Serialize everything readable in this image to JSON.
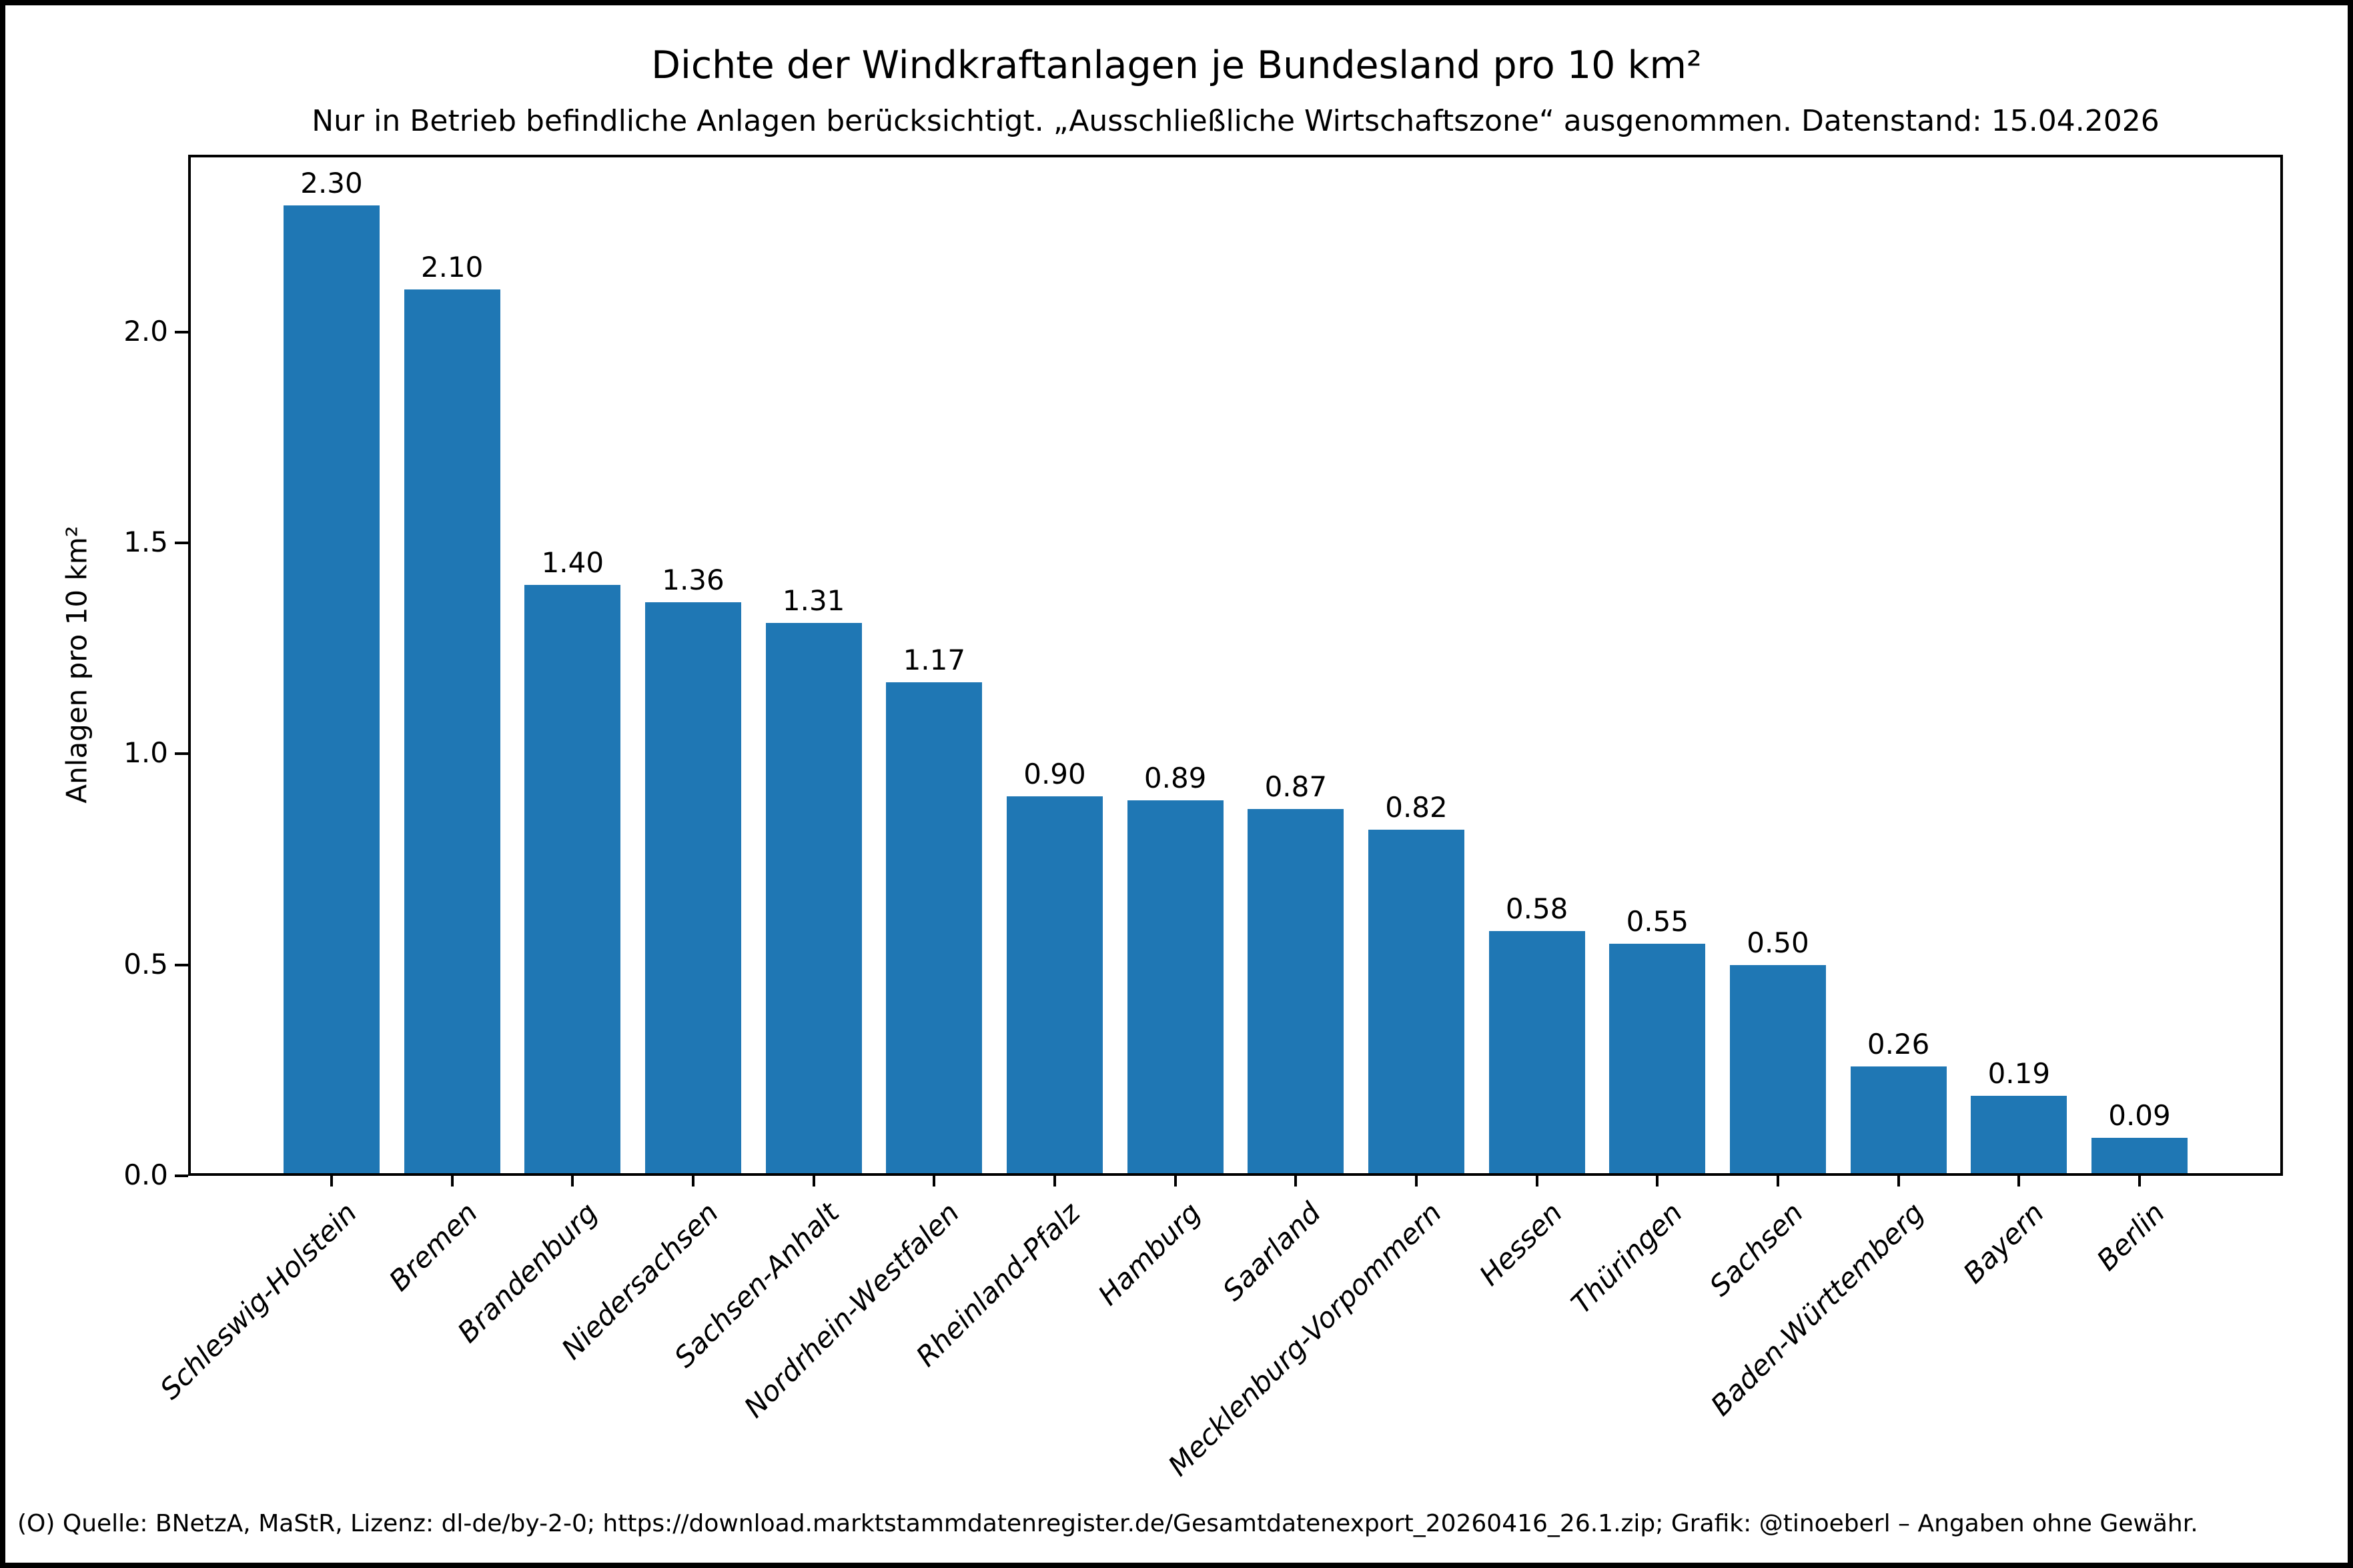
{
  "chart_data": {
    "type": "bar",
    "title": "Dichte der Windkraftanlagen je Bundesland pro 10 km²",
    "subtitle": "Nur in Betrieb befindliche Anlagen berücksichtigt. „Ausschließliche Wirtschaftszone“ ausgenommen. Datenstand: 15.04.2026",
    "ylabel": "Anlagen pro 10 km²",
    "xlabel": "",
    "categories": [
      "Schleswig-Holstein",
      "Bremen",
      "Brandenburg",
      "Niedersachsen",
      "Sachsen-Anhalt",
      "Nordrhein-Westfalen",
      "Rheinland-Pfalz",
      "Hamburg",
      "Saarland",
      "Mecklenburg-Vorpommern",
      "Hessen",
      "Thüringen",
      "Sachsen",
      "Baden-Württemberg",
      "Bayern",
      "Berlin"
    ],
    "values": [
      2.3,
      2.1,
      1.4,
      1.36,
      1.31,
      1.17,
      0.9,
      0.89,
      0.87,
      0.82,
      0.58,
      0.55,
      0.5,
      0.26,
      0.19,
      0.09
    ],
    "bar_labels": [
      "2.30",
      "2.10",
      "1.40",
      "1.36",
      "1.31",
      "1.17",
      "0.90",
      "0.89",
      "0.87",
      "0.82",
      "0.58",
      "0.55",
      "0.50",
      "0.26",
      "0.19",
      "0.09"
    ],
    "yticks": {
      "labels": [
        "0.0",
        "0.5",
        "1.0",
        "1.5",
        "2.0"
      ],
      "values": [
        0.0,
        0.5,
        1.0,
        1.5,
        2.0
      ]
    },
    "ylim": [
      0,
      2.42
    ],
    "grid": false,
    "legend": "none",
    "bar_color": "#1f77b4",
    "text_color": "#000000",
    "source_note": "(O) Quelle: BNetzA, MaStR, Lizenz: dl-de/by-2-0; https://download.marktstammdatenregister.de/Gesamtdatenexport_20260416_26.1.zip; Grafik: @tinoeberl – Angaben ohne Gewähr."
  }
}
